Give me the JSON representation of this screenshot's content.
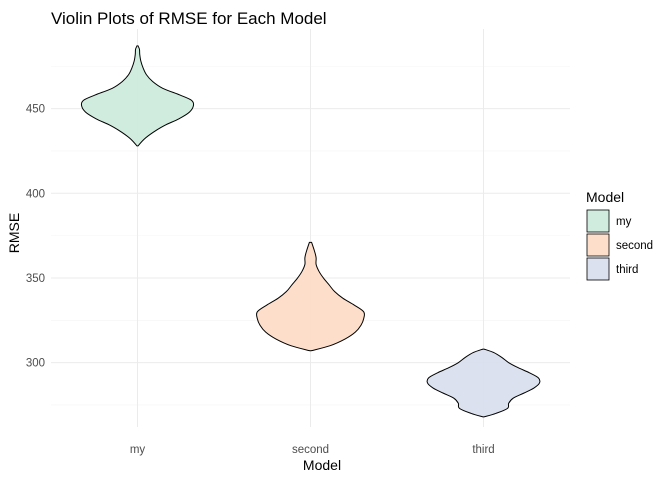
{
  "chart_data": {
    "type": "violin",
    "title": "Violin Plots of RMSE for Each Model",
    "xlabel": "Model",
    "ylabel": "RMSE",
    "categories": [
      "my",
      "second",
      "third"
    ],
    "ylim": [
      262,
      497
    ],
    "yticks": [
      300,
      350,
      400,
      450
    ],
    "grid": true,
    "legend": {
      "title": "Model",
      "placement": "right",
      "entries": [
        "my",
        "second",
        "third"
      ]
    },
    "colors": {
      "my": "#cdebdc",
      "second": "#fcdcc8",
      "third": "#d9dfed"
    },
    "series": [
      {
        "name": "my",
        "range": [
          428,
          487
        ],
        "density": [
          [
            428,
            0.01
          ],
          [
            432,
            0.12
          ],
          [
            436,
            0.28
          ],
          [
            440,
            0.48
          ],
          [
            444,
            0.74
          ],
          [
            448,
            0.93
          ],
          [
            452,
            1.0
          ],
          [
            455,
            0.96
          ],
          [
            458,
            0.76
          ],
          [
            462,
            0.45
          ],
          [
            466,
            0.27
          ],
          [
            470,
            0.16
          ],
          [
            474,
            0.1
          ],
          [
            478,
            0.06
          ],
          [
            482,
            0.04
          ],
          [
            485,
            0.035
          ],
          [
            487,
            0.01
          ]
        ]
      },
      {
        "name": "second",
        "range": [
          307,
          371
        ],
        "density": [
          [
            307,
            0.01
          ],
          [
            310,
            0.35
          ],
          [
            314,
            0.62
          ],
          [
            318,
            0.8
          ],
          [
            322,
            0.9
          ],
          [
            326,
            0.95
          ],
          [
            330,
            0.95
          ],
          [
            334,
            0.78
          ],
          [
            338,
            0.58
          ],
          [
            342,
            0.43
          ],
          [
            346,
            0.33
          ],
          [
            350,
            0.23
          ],
          [
            354,
            0.15
          ],
          [
            358,
            0.1
          ],
          [
            362,
            0.1
          ],
          [
            366,
            0.07
          ],
          [
            371,
            0.02
          ]
        ]
      },
      {
        "name": "third",
        "range": [
          268,
          308
        ],
        "density": [
          [
            268,
            0.01
          ],
          [
            270,
            0.22
          ],
          [
            273,
            0.43
          ],
          [
            276,
            0.45
          ],
          [
            279,
            0.53
          ],
          [
            282,
            0.72
          ],
          [
            285,
            0.9
          ],
          [
            288,
            1.0
          ],
          [
            291,
            0.98
          ],
          [
            294,
            0.82
          ],
          [
            297,
            0.62
          ],
          [
            300,
            0.45
          ],
          [
            303,
            0.33
          ],
          [
            306,
            0.18
          ],
          [
            308,
            0.01
          ]
        ]
      }
    ]
  }
}
